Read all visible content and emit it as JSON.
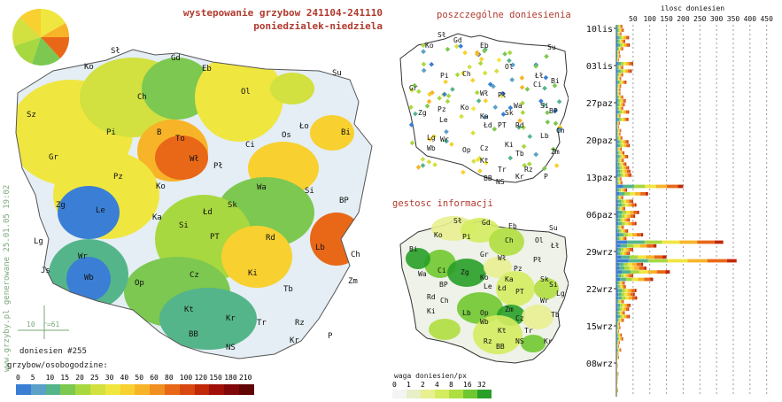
{
  "header": {
    "title": "wystepowanie grzybow 241104-241110",
    "subtitle": "poniedzialek-niedziela"
  },
  "watermark": "www.grzyby.pl generowane 25.01.05 19:02",
  "main_map": {
    "city_labels": [
      "Sł",
      "Gd",
      "Eb",
      "Su",
      "Ko",
      "Ch",
      "Ol",
      "Sz",
      "Pi",
      "B",
      "To",
      "Ło",
      "Bi",
      "Os",
      "Gr",
      "Wł",
      "Ci",
      "Pł",
      "Pz",
      "Ko",
      "Wa",
      "Si",
      "Zg",
      "Le",
      "Ka",
      "Sk",
      "Łd",
      "BP",
      "Si",
      "PT",
      "Rd",
      "Lb",
      "Ch",
      "Lg",
      "Wr",
      "Op",
      "Ki",
      "Zm",
      "Wb",
      "Cz",
      "Tb",
      "Kt",
      "Kr",
      "Rz",
      "Tr",
      "BB",
      "NS",
      "Kr",
      "P",
      "Js"
    ],
    "scale_label": "r=61",
    "scale_value": "10",
    "count_label": "doniesien #255",
    "legend_title": "grzybow/osobogodzine:",
    "legend_values": [
      "0",
      "5",
      "10",
      "15",
      "20",
      "25",
      "30",
      "40",
      "50",
      "60",
      "80",
      "100",
      "120",
      "150",
      "180",
      "210"
    ],
    "legend_colors": [
      "#3a7fd5",
      "#5aa0c8",
      "#55b58a",
      "#7cc850",
      "#a8d840",
      "#d2e040",
      "#f0e640",
      "#f8d030",
      "#f8b428",
      "#f09020",
      "#e86818",
      "#d84810",
      "#c02808",
      "#a01008",
      "#800808",
      "#600404"
    ]
  },
  "map_reports": {
    "title": "poszczególne doniesienia",
    "city_labels": [
      "Sł",
      "Gd",
      "Eb",
      "Su",
      "Ko",
      "Pi",
      "Ch",
      "Ol",
      "Łł",
      "Bi",
      "Gr",
      "Wł",
      "Pł",
      "Ci",
      "Pz",
      "Wa",
      "Zg",
      "Ko",
      "Ka",
      "Sk",
      "Si",
      "BP",
      "Le",
      "Łd",
      "PT",
      "Rd",
      "Lg",
      "Ch",
      "Wr",
      "Lb",
      "Op",
      "Cz",
      "Tb",
      "Zm",
      "Ki",
      "Wb",
      "Kt",
      "Tr",
      "Rz",
      "BB",
      "NS",
      "Kr",
      "P"
    ]
  },
  "map_density": {
    "title": "gestosc informacji",
    "legend_title": "waga doniesien/px",
    "legend_values": [
      "0",
      "1",
      "2",
      "4",
      "8",
      "16",
      "32"
    ],
    "legend_colors": [
      "#f4f4f4",
      "#e6efc8",
      "#e8f090",
      "#d4ec60",
      "#b0de40",
      "#70c830",
      "#28a028"
    ]
  },
  "chart_data": {
    "type": "bar",
    "title": "ilosc doniesien",
    "orientation": "horizontal-stacked",
    "xlim": [
      0,
      480
    ],
    "x_ticks": [
      50,
      100,
      150,
      200,
      250,
      300,
      350,
      400,
      450
    ],
    "x_tick_labels": [
      "50",
      "100",
      "150",
      "200",
      "250",
      "300",
      "350",
      "400",
      "450"
    ],
    "y_tick_labels": [
      "10lis",
      "03lis",
      "27paz",
      "20paz",
      "13paz",
      "06paz",
      "29wrz",
      "22wrz",
      "15wrz",
      "08wrz"
    ],
    "grid": true,
    "daily_totals": [
      {
        "date": "10lis",
        "values": [
          18,
          22,
          15,
          38,
          26,
          40,
          20,
          10,
          12,
          8
        ]
      },
      {
        "date": "03lis",
        "values": [
          50,
          20,
          46,
          20,
          14,
          30,
          14,
          12,
          12,
          20
        ]
      },
      {
        "date": "27paz",
        "values": [
          28,
          25,
          20,
          38,
          12,
          36,
          10,
          8,
          14,
          12
        ]
      },
      {
        "date": "20paz",
        "values": [
          18,
          36,
          40,
          16,
          24,
          35,
          22,
          30,
          38,
          42
        ]
      },
      {
        "date": "13paz",
        "values": [
          45,
          15,
          18,
          200,
          32,
          95,
          20,
          50,
          60,
          26
        ]
      },
      {
        "date": "06paz",
        "values": [
          68,
          56,
          40,
          60,
          22,
          35,
          80,
          30,
          320,
          120
        ]
      },
      {
        "date": "29wrz",
        "values": [
          50,
          40,
          150,
          360,
          80,
          90,
          160,
          50,
          110,
          25
        ]
      },
      {
        "date": "22wrz",
        "values": [
          28,
          60,
          55,
          62,
          22,
          42,
          38,
          25,
          40,
          22
        ]
      },
      {
        "date": "15wrz",
        "values": [
          10,
          12,
          8,
          16,
          20,
          10,
          8,
          14,
          6,
          8
        ]
      },
      {
        "date": "08wrz",
        "values": [
          2,
          4,
          2,
          6,
          4,
          3,
          2,
          5,
          2
        ]
      }
    ],
    "stack_colors": [
      "#3a7fd5",
      "#55b58a",
      "#a8d840",
      "#f0e640",
      "#f8b428",
      "#e86818",
      "#c02808"
    ]
  }
}
